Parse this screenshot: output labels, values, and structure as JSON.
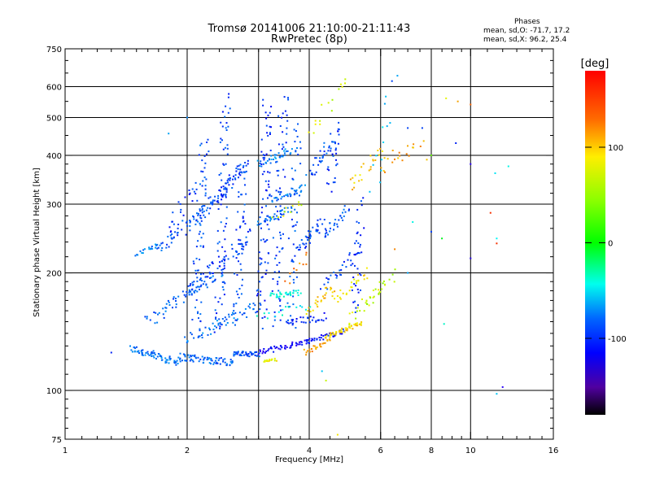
{
  "header": {
    "title_line_1": "Tromsø 20141006 21:10:00-21:11:43",
    "title_line_2": "RwPretec (8p)"
  },
  "stats": {
    "heading": "Phases",
    "line_1": "mean, sd,O: -71.7, 17.2",
    "line_2": "mean, sd,X:  96.2, 25.4"
  },
  "colorbar": {
    "label": "[deg]",
    "ticks": [
      "100",
      "0",
      "-100"
    ],
    "tick_values": [
      100,
      0,
      -100
    ],
    "range": [
      -180,
      180
    ]
  },
  "chart_data": {
    "type": "scatter",
    "title": "Tromsø 20141006 21:10:00-21:11:43",
    "subtitle": "RwPretec (8p)",
    "xlabel": "Frequency [MHz]",
    "ylabel": "Stationary phase Virtual Height [km]",
    "x_scale": "log",
    "y_scale": "log",
    "xlim": [
      1,
      16
    ],
    "ylim": [
      75,
      750
    ],
    "x_ticks": [
      1,
      2,
      4,
      6,
      8,
      10,
      16
    ],
    "x_tick_labels": [
      "1",
      "2",
      "4",
      "6",
      "8",
      "10",
      "16"
    ],
    "x_minor_ticks": [
      1.1,
      1.2,
      1.3,
      1.4,
      1.5,
      1.6,
      1.7,
      1.8,
      1.9,
      2.2,
      2.4,
      2.6,
      2.8,
      3,
      3.2,
      3.4,
      3.6,
      3.8,
      4.5,
      5,
      5.5,
      6.5,
      7,
      7.5,
      8.5,
      9,
      9.5,
      11,
      12,
      13,
      14,
      15
    ],
    "x_grid": [
      2,
      3,
      4,
      6,
      8,
      10
    ],
    "y_ticks": [
      75,
      100,
      200,
      300,
      400,
      500,
      600,
      750
    ],
    "y_tick_labels": [
      "75",
      "100",
      "200",
      "300",
      "400",
      "500",
      "600",
      "750"
    ],
    "y_minor_ticks": [
      80,
      85,
      90,
      95,
      110,
      120,
      130,
      140,
      150,
      160,
      170,
      180,
      190,
      220,
      240,
      260,
      280,
      320,
      340,
      360,
      380,
      450,
      550,
      650,
      700
    ],
    "y_grid": [
      100,
      200,
      300,
      400,
      500,
      600
    ],
    "colorscale": "rainbow phase [deg]",
    "traces": [
      {
        "f": [
          1.45,
          1.9
        ],
        "h": [
          128,
          118
        ],
        "phase": -85,
        "count": 70,
        "spread": 0.03
      },
      {
        "f": [
          1.9,
          2.6
        ],
        "h": [
          122,
          118
        ],
        "phase": -90,
        "count": 70,
        "spread": 0.03
      },
      {
        "f": [
          2.6,
          3.0
        ],
        "h": [
          124,
          124
        ],
        "phase": -95,
        "count": 45,
        "spread": 0.02
      },
      {
        "f": [
          3.0,
          4.0
        ],
        "h": [
          125,
          134
        ],
        "phase": -125,
        "count": 50,
        "spread": 0.02
      },
      {
        "f": [
          4.0,
          4.9
        ],
        "h": [
          134,
          142
        ],
        "phase": -110,
        "count": 35,
        "spread": 0.02
      },
      {
        "f": [
          1.7,
          2.3
        ],
        "h": [
          230,
          300
        ],
        "phase": -95,
        "count": 60,
        "spread": 0.05
      },
      {
        "f": [
          2.3,
          2.8
        ],
        "h": [
          300,
          380
        ],
        "phase": -100,
        "count": 60,
        "spread": 0.05
      },
      {
        "f": [
          2.0,
          2.9
        ],
        "h": [
          180,
          250
        ],
        "phase": -100,
        "count": 60,
        "spread": 0.05
      },
      {
        "f": [
          1.6,
          2.4
        ],
        "h": [
          150,
          200
        ],
        "phase": -90,
        "count": 60,
        "spread": 0.05
      },
      {
        "f": [
          2.0,
          3.0
        ],
        "h": [
          135,
          165
        ],
        "phase": -85,
        "count": 60,
        "spread": 0.04
      },
      {
        "f": [
          2.1,
          2.2
        ],
        "h": [
          150,
          440
        ],
        "phase": -95,
        "count": 70,
        "spread": 0.06
      },
      {
        "f": [
          2.4,
          2.5
        ],
        "h": [
          140,
          560
        ],
        "phase": -100,
        "count": 80,
        "spread": 0.06
      },
      {
        "f": [
          2.65,
          2.75
        ],
        "h": [
          150,
          380
        ],
        "phase": -100,
        "count": 50,
        "spread": 0.05
      },
      {
        "f": [
          3.05,
          3.15
        ],
        "h": [
          150,
          540
        ],
        "phase": -105,
        "count": 80,
        "spread": 0.06
      },
      {
        "f": [
          3.3,
          3.45
        ],
        "h": [
          145,
          560
        ],
        "phase": -100,
        "count": 70,
        "spread": 0.06
      },
      {
        "f": [
          3.6,
          3.75
        ],
        "h": [
          145,
          480
        ],
        "phase": -95,
        "count": 55,
        "spread": 0.06
      },
      {
        "f": [
          3.0,
          3.6
        ],
        "h": [
          380,
          410
        ],
        "phase": -80,
        "count": 35,
        "spread": 0.03
      },
      {
        "f": [
          3.2,
          3.9
        ],
        "h": [
          310,
          330
        ],
        "phase": -85,
        "count": 35,
        "spread": 0.03
      },
      {
        "f": [
          3.0,
          3.6
        ],
        "h": [
          270,
          290
        ],
        "phase": -90,
        "count": 30,
        "spread": 0.03
      },
      {
        "f": [
          3.8,
          4.3
        ],
        "h": [
          230,
          270
        ],
        "phase": -100,
        "count": 35,
        "spread": 0.04
      },
      {
        "f": [
          4.3,
          5.0
        ],
        "h": [
          250,
          290
        ],
        "phase": -95,
        "count": 30,
        "spread": 0.04
      },
      {
        "f": [
          4.0,
          4.6
        ],
        "h": [
          360,
          440
        ],
        "phase": -95,
        "count": 35,
        "spread": 0.05
      },
      {
        "f": [
          3.2,
          3.8
        ],
        "h": [
          175,
          178
        ],
        "phase": -35,
        "count": 30,
        "spread": 0.02
      },
      {
        "f": [
          3.5,
          4.4
        ],
        "h": [
          148,
          155
        ],
        "phase": -110,
        "count": 30,
        "spread": 0.03
      },
      {
        "f": [
          4.3,
          5.3
        ],
        "h": [
          185,
          225
        ],
        "phase": -100,
        "count": 30,
        "spread": 0.05
      },
      {
        "f": [
          5.2,
          5.35
        ],
        "h": [
          160,
          300
        ],
        "phase": -105,
        "count": 35,
        "spread": 0.05
      },
      {
        "f": [
          4.5,
          4.7
        ],
        "h": [
          330,
          480
        ],
        "phase": -105,
        "count": 25,
        "spread": 0.05
      },
      {
        "f": [
          1.5,
          1.7
        ],
        "h": [
          220,
          240
        ],
        "phase": -80,
        "count": 18,
        "spread": 0.03
      },
      {
        "f": [
          1.8,
          2.1
        ],
        "h": [
          260,
          340
        ],
        "phase": -105,
        "count": 20,
        "spread": 0.05
      },
      {
        "f": [
          4.4,
          5.4
        ],
        "h": [
          138,
          148
        ],
        "phase": 115,
        "count": 45,
        "spread": 0.02
      },
      {
        "f": [
          3.9,
          4.5
        ],
        "h": [
          125,
          134
        ],
        "phase": 135,
        "count": 25,
        "spread": 0.02
      },
      {
        "f": [
          4.0,
          4.6
        ],
        "h": [
          160,
          185
        ],
        "phase": 120,
        "count": 25,
        "spread": 0.04
      },
      {
        "f": [
          4.6,
          5.6
        ],
        "h": [
          170,
          200
        ],
        "phase": 110,
        "count": 25,
        "spread": 0.04
      },
      {
        "f": [
          5.0,
          6.0
        ],
        "h": [
          150,
          185
        ],
        "phase": 95,
        "count": 20,
        "spread": 0.04
      },
      {
        "f": [
          5.5,
          6.5
        ],
        "h": [
          165,
          200
        ],
        "phase": 80,
        "count": 18,
        "spread": 0.04
      },
      {
        "f": [
          5.0,
          6.0
        ],
        "h": [
          330,
          420
        ],
        "phase": 120,
        "count": 22,
        "spread": 0.05
      },
      {
        "f": [
          6.0,
          7.5
        ],
        "h": [
          370,
          440
        ],
        "phase": 130,
        "count": 20,
        "spread": 0.05
      },
      {
        "f": [
          3.1,
          3.3
        ],
        "h": [
          118,
          120
        ],
        "phase": 100,
        "count": 15,
        "spread": 0.015
      },
      {
        "f": [
          3.3,
          3.9
        ],
        "h": [
          280,
          300
        ],
        "phase": 95,
        "count": 10,
        "spread": 0.04
      },
      {
        "f": [
          4.0,
          5.0
        ],
        "h": [
          440,
          640
        ],
        "phase": 95,
        "count": 15,
        "spread": 0.06
      },
      {
        "f": [
          5.8,
          6.3
        ],
        "h": [
          330,
          550
        ],
        "phase": -60,
        "count": 12,
        "spread": 0.06
      },
      {
        "f": [
          3.5,
          4.0
        ],
        "h": [
          190,
          220
        ],
        "phase": 140,
        "count": 10,
        "spread": 0.04
      },
      {
        "f": [
          3.0,
          4.0
        ],
        "h": [
          155,
          165
        ],
        "phase": -40,
        "count": 15,
        "spread": 0.03
      }
    ],
    "points": [
      {
        "f": 6.4,
        "h": 620,
        "phase": -100
      },
      {
        "f": 6.6,
        "h": 640,
        "phase": -70
      },
      {
        "f": 7.0,
        "h": 470,
        "phase": -100
      },
      {
        "f": 7.6,
        "h": 470,
        "phase": -100
      },
      {
        "f": 8.0,
        "h": 400,
        "phase": 60
      },
      {
        "f": 7.8,
        "h": 390,
        "phase": 120
      },
      {
        "f": 8.7,
        "h": 560,
        "phase": 100
      },
      {
        "f": 9.3,
        "h": 550,
        "phase": 130
      },
      {
        "f": 10.0,
        "h": 540,
        "phase": 150
      },
      {
        "f": 9.2,
        "h": 430,
        "phase": -110
      },
      {
        "f": 10.0,
        "h": 380,
        "phase": -130
      },
      {
        "f": 11.5,
        "h": 360,
        "phase": -50
      },
      {
        "f": 12.4,
        "h": 375,
        "phase": -40
      },
      {
        "f": 11.2,
        "h": 285,
        "phase": 165
      },
      {
        "f": 11.6,
        "h": 245,
        "phase": -45
      },
      {
        "f": 11.6,
        "h": 238,
        "phase": 165
      },
      {
        "f": 8.5,
        "h": 245,
        "phase": 20
      },
      {
        "f": 10.0,
        "h": 218,
        "phase": -140
      },
      {
        "f": 8.0,
        "h": 255,
        "phase": -100
      },
      {
        "f": 12.0,
        "h": 102,
        "phase": -130
      },
      {
        "f": 11.6,
        "h": 98,
        "phase": -60
      },
      {
        "f": 8.6,
        "h": 148,
        "phase": -30
      },
      {
        "f": 7.0,
        "h": 200,
        "phase": -70
      },
      {
        "f": 7.2,
        "h": 270,
        "phase": -40
      },
      {
        "f": 6.5,
        "h": 230,
        "phase": 140
      },
      {
        "f": 4.4,
        "h": 106,
        "phase": 90
      },
      {
        "f": 4.7,
        "h": 77,
        "phase": 110
      },
      {
        "f": 4.3,
        "h": 112,
        "phase": -60
      },
      {
        "f": 1.8,
        "h": 455,
        "phase": -70
      },
      {
        "f": 2.0,
        "h": 500,
        "phase": -80
      },
      {
        "f": 1.3,
        "h": 125,
        "phase": -110
      }
    ]
  }
}
